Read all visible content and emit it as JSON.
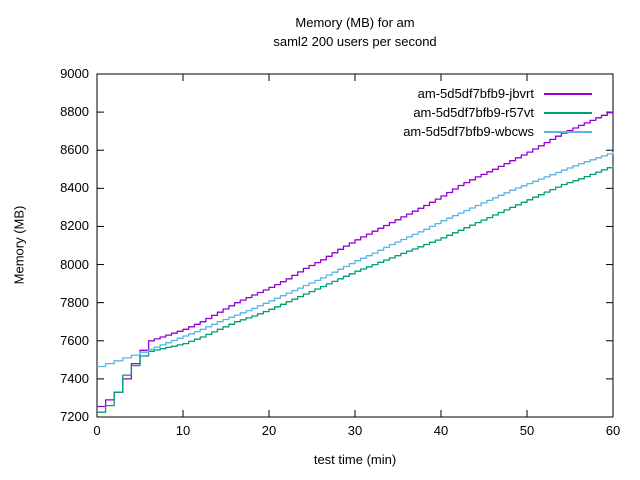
{
  "title": {
    "line1": "Memory (MB) for am",
    "line2": "saml2 200 users per second"
  },
  "axes": {
    "xlabel": "test time (min)",
    "ylabel": "Memory (MB)",
    "x_ticks": [
      0,
      10,
      20,
      30,
      40,
      50,
      60
    ],
    "y_ticks": [
      7200,
      7400,
      7600,
      7800,
      8000,
      8200,
      8400,
      8600,
      8800,
      9000
    ]
  },
  "legend": {
    "position": "top-right-inside",
    "entries": [
      {
        "label": "am-5d5df7bfb9-jbvrt",
        "color": "#9400d3"
      },
      {
        "label": "am-5d5df7bfb9-r57vt",
        "color": "#009e73"
      },
      {
        "label": "am-5d5df7bfb9-wbcws",
        "color": "#56b4e9"
      }
    ]
  },
  "colors": {
    "border": "#000000",
    "background": "#ffffff",
    "series_jbvrt": "#9400d3",
    "series_r57vt": "#009e73",
    "series_wbcws": "#56b4e9"
  },
  "chart_data": {
    "type": "line",
    "title": "Memory (MB) for am saml2 200 users per second",
    "xlabel": "test time (min)",
    "ylabel": "Memory (MB)",
    "xlim": [
      0,
      60
    ],
    "ylim": [
      7200,
      9000
    ],
    "grid": false,
    "line_style": "stepped",
    "x": [
      0,
      1,
      2,
      3,
      4,
      5,
      6,
      8,
      10,
      12,
      14,
      16,
      18,
      20,
      22,
      24,
      26,
      28,
      30,
      32,
      34,
      36,
      38,
      40,
      42,
      44,
      46,
      48,
      50,
      52,
      54,
      56,
      58,
      60
    ],
    "series": [
      {
        "name": "am-5d5df7bfb9-jbvrt",
        "color": "#9400d3",
        "values": [
          7255,
          7290,
          7330,
          7400,
          7480,
          7550,
          7600,
          7630,
          7660,
          7700,
          7750,
          7800,
          7840,
          7880,
          7925,
          7980,
          8025,
          8080,
          8130,
          8175,
          8220,
          8265,
          8310,
          8360,
          8415,
          8460,
          8500,
          8545,
          8590,
          8640,
          8690,
          8730,
          8770,
          8810
        ]
      },
      {
        "name": "am-5d5df7bfb9-r57vt",
        "color": "#009e73",
        "values": [
          7225,
          7260,
          7330,
          7420,
          7470,
          7520,
          7545,
          7565,
          7585,
          7620,
          7660,
          7700,
          7730,
          7765,
          7805,
          7845,
          7885,
          7925,
          7965,
          8000,
          8035,
          8070,
          8105,
          8140,
          8180,
          8220,
          8260,
          8300,
          8340,
          8380,
          8420,
          8450,
          8485,
          8520
        ]
      },
      {
        "name": "am-5d5df7bfb9-wbcws",
        "color": "#56b4e9",
        "values": [
          7465,
          7480,
          7495,
          7510,
          7525,
          7540,
          7555,
          7590,
          7625,
          7660,
          7700,
          7735,
          7770,
          7810,
          7850,
          7890,
          7930,
          7975,
          8020,
          8060,
          8105,
          8145,
          8185,
          8230,
          8270,
          8310,
          8350,
          8390,
          8425,
          8460,
          8495,
          8530,
          8560,
          8590
        ]
      }
    ]
  }
}
